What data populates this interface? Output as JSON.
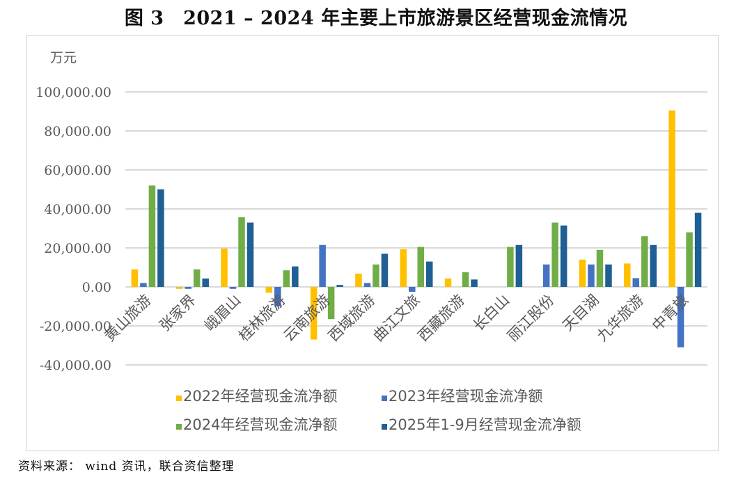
{
  "header": {
    "title": "图 3　2021 – 2024 年主要上市旅游景区经营现金流情况"
  },
  "footer": {
    "source": "资料来源：  wind 资讯，联合资信整理"
  },
  "colors": {
    "series_2022": "#ffc000",
    "series_2023": "#4472c4",
    "series_2024": "#70ad47",
    "series_2025": "#1f5f94",
    "grid": "#d9d9d9",
    "axis_text": "#595959"
  },
  "chart_data": {
    "type": "bar",
    "title": "2021 – 2024 年主要上市旅游景区经营现金流情况",
    "ylabel": "万元",
    "xlabel": "",
    "ylim": [
      -40000,
      100000
    ],
    "yticks": [
      "100,000.00",
      "80,000.00",
      "60,000.00",
      "40,000.00",
      "20,000.00",
      "0.00",
      "-20,000.00",
      "-40,000.00"
    ],
    "ytick_values": [
      100000,
      80000,
      60000,
      40000,
      20000,
      0,
      -20000,
      -40000
    ],
    "grid": true,
    "legend_position": "bottom",
    "categories": [
      "黄山旅游",
      "张家界",
      "峨眉山",
      "桂林旅游",
      "云南旅游",
      "西域旅游",
      "曲江文旅",
      "西藏旅游",
      "长白山",
      "丽江股份",
      "天目湖",
      "九华旅游",
      "中青旅"
    ],
    "series": [
      {
        "name": "2022年经营现金流净额",
        "color": "#ffc000",
        "values": [
          9000,
          -1000,
          19700,
          -3000,
          -27000,
          6800,
          19300,
          4300,
          0,
          0,
          14000,
          12000,
          90500
        ]
      },
      {
        "name": "2023年经营现金流净额",
        "color": "#4472c4",
        "values": [
          2000,
          -1000,
          -1000,
          -10000,
          21500,
          2000,
          -2500,
          0,
          0,
          11500,
          11500,
          4500,
          -31000
        ]
      },
      {
        "name": "2024年经营现金流净额",
        "color": "#70ad47",
        "values": [
          52000,
          9000,
          35700,
          8500,
          -16500,
          11500,
          20500,
          7500,
          20500,
          33000,
          19000,
          26000,
          28000
        ]
      },
      {
        "name": "2025年1-9月经营现金流净额",
        "color": "#1f5f94",
        "values": [
          50000,
          4300,
          33000,
          10500,
          1000,
          17000,
          13000,
          3800,
          21500,
          31500,
          11500,
          21500,
          38000
        ]
      }
    ]
  }
}
